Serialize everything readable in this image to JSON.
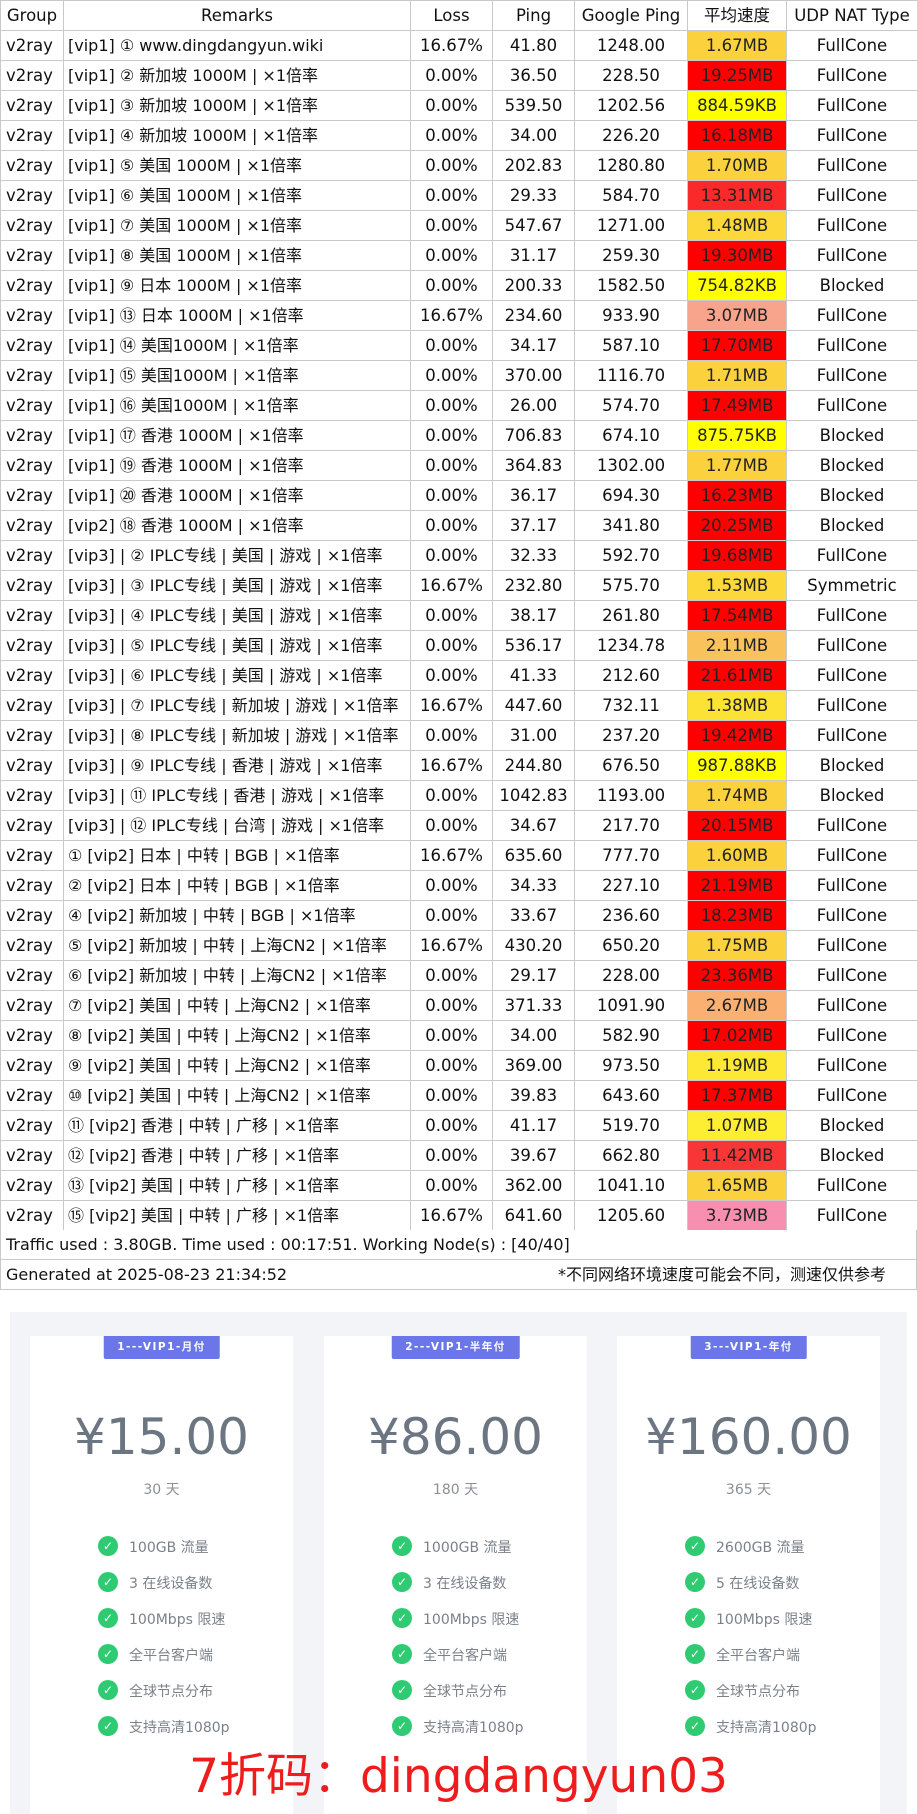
{
  "table": {
    "headers": [
      "Group",
      "Remarks",
      "Loss",
      "Ping",
      "Google Ping",
      "平均速度",
      "UDP NAT Type"
    ],
    "rows": [
      {
        "group": "v2ray",
        "remarks": "[vip1] ① www.dingdangyun.wiki",
        "loss": "16.67%",
        "ping": "41.80",
        "gping": "1248.00",
        "speed": "1.67MB",
        "speed_color": "#fbd23e",
        "nat": "FullCone"
      },
      {
        "group": "v2ray",
        "remarks": "[vip1] ② 新加坡 1000M | ×1倍率",
        "loss": "0.00%",
        "ping": "36.50",
        "gping": "228.50",
        "speed": "19.25MB",
        "speed_color": "#ff0000",
        "nat": "FullCone"
      },
      {
        "group": "v2ray",
        "remarks": "[vip1] ③ 新加坡 1000M | ×1倍率",
        "loss": "0.00%",
        "ping": "539.50",
        "gping": "1202.56",
        "speed": "884.59KB",
        "speed_color": "#ffff00",
        "nat": "FullCone"
      },
      {
        "group": "v2ray",
        "remarks": "[vip1] ④  新加坡 1000M | ×1倍率",
        "loss": "0.00%",
        "ping": "34.00",
        "gping": "226.20",
        "speed": "16.18MB",
        "speed_color": "#ff0000",
        "nat": "FullCone"
      },
      {
        "group": "v2ray",
        "remarks": "[vip1] ⑤  美国 1000M | ×1倍率",
        "loss": "0.00%",
        "ping": "202.83",
        "gping": "1280.80",
        "speed": "1.70MB",
        "speed_color": "#fbd23e",
        "nat": "FullCone"
      },
      {
        "group": "v2ray",
        "remarks": "[vip1] ⑥  美国 1000M | ×1倍率",
        "loss": "0.00%",
        "ping": "29.33",
        "gping": "584.70",
        "speed": "13.31MB",
        "speed_color": "#fa2a2a",
        "nat": "FullCone"
      },
      {
        "group": "v2ray",
        "remarks": "[vip1] ⑦ 美国 1000M | ×1倍率",
        "loss": "0.00%",
        "ping": "547.67",
        "gping": "1271.00",
        "speed": "1.48MB",
        "speed_color": "#fcd83b",
        "nat": "FullCone"
      },
      {
        "group": "v2ray",
        "remarks": "[vip1] ⑧ 美国 1000M | ×1倍率",
        "loss": "0.00%",
        "ping": "31.17",
        "gping": "259.30",
        "speed": "19.30MB",
        "speed_color": "#ff0000",
        "nat": "FullCone"
      },
      {
        "group": "v2ray",
        "remarks": "[vip1] ⑨ 日本 1000M | ×1倍率",
        "loss": "0.00%",
        "ping": "200.33",
        "gping": "1582.50",
        "speed": "754.82KB",
        "speed_color": "#ffff00",
        "nat": "Blocked"
      },
      {
        "group": "v2ray",
        "remarks": "[vip1] ⑬ 日本 1000M | ×1倍率",
        "loss": "16.67%",
        "ping": "234.60",
        "gping": "933.90",
        "speed": "3.07MB",
        "speed_color": "#f8a48c",
        "nat": "FullCone"
      },
      {
        "group": "v2ray",
        "remarks": "[vip1] ⑭ 美国1000M | ×1倍率",
        "loss": "0.00%",
        "ping": "34.17",
        "gping": "587.10",
        "speed": "17.70MB",
        "speed_color": "#ff0000",
        "nat": "FullCone"
      },
      {
        "group": "v2ray",
        "remarks": "[vip1] ⑮ 美国1000M | ×1倍率",
        "loss": "0.00%",
        "ping": "370.00",
        "gping": "1116.70",
        "speed": "1.71MB",
        "speed_color": "#fbd23e",
        "nat": "FullCone"
      },
      {
        "group": "v2ray",
        "remarks": "[vip1] ⑯ 美国1000M | ×1倍率",
        "loss": "0.00%",
        "ping": "26.00",
        "gping": "574.70",
        "speed": "17.49MB",
        "speed_color": "#ff0000",
        "nat": "FullCone"
      },
      {
        "group": "v2ray",
        "remarks": "[vip1] ⑰ 香港 1000M | ×1倍率",
        "loss": "0.00%",
        "ping": "706.83",
        "gping": "674.10",
        "speed": "875.75KB",
        "speed_color": "#ffff00",
        "nat": "Blocked"
      },
      {
        "group": "v2ray",
        "remarks": "[vip1] ⑲ 香港 1000M | ×1倍率",
        "loss": "0.00%",
        "ping": "364.83",
        "gping": "1302.00",
        "speed": "1.77MB",
        "speed_color": "#fbd23e",
        "nat": "Blocked"
      },
      {
        "group": "v2ray",
        "remarks": "[vip1] ⑳ 香港 1000M | ×1倍率",
        "loss": "0.00%",
        "ping": "36.17",
        "gping": "694.30",
        "speed": "16.23MB",
        "speed_color": "#ff0000",
        "nat": "Blocked"
      },
      {
        "group": "v2ray",
        "remarks": "[vip2] ⑱ 香港 1000M | ×1倍率",
        "loss": "0.00%",
        "ping": "37.17",
        "gping": "341.80",
        "speed": "20.25MB",
        "speed_color": "#ff0000",
        "nat": "Blocked"
      },
      {
        "group": "v2ray",
        "remarks": "[vip3] | ② IPLC专线 | 美国 | 游戏 | ×1倍率",
        "loss": "0.00%",
        "ping": "32.33",
        "gping": "592.70",
        "speed": "19.68MB",
        "speed_color": "#ff0000",
        "nat": "FullCone"
      },
      {
        "group": "v2ray",
        "remarks": "[vip3] | ③ IPLC专线 | 美国 | 游戏 | ×1倍率",
        "loss": "16.67%",
        "ping": "232.80",
        "gping": "575.70",
        "speed": "1.53MB",
        "speed_color": "#fcd83b",
        "nat": "Symmetric"
      },
      {
        "group": "v2ray",
        "remarks": "[vip3] | ④ IPLC专线 | 美国 | 游戏 | ×1倍率",
        "loss": "0.00%",
        "ping": "38.17",
        "gping": "261.80",
        "speed": "17.54MB",
        "speed_color": "#ff0000",
        "nat": "FullCone"
      },
      {
        "group": "v2ray",
        "remarks": "[vip3] | ⑤ IPLC专线 | 美国 | 游戏 | ×1倍率",
        "loss": "0.00%",
        "ping": "536.17",
        "gping": "1234.78",
        "speed": "2.11MB",
        "speed_color": "#fac25a",
        "nat": "FullCone"
      },
      {
        "group": "v2ray",
        "remarks": "[vip3] | ⑥ IPLC专线 | 美国 | 游戏 | ×1倍率",
        "loss": "0.00%",
        "ping": "41.33",
        "gping": "212.60",
        "speed": "21.61MB",
        "speed_color": "#ff0000",
        "nat": "FullCone"
      },
      {
        "group": "v2ray",
        "remarks": "[vip3] | ⑦ IPLC专线 | 新加坡 | 游戏 | ×1倍率",
        "loss": "16.67%",
        "ping": "447.60",
        "gping": "732.11",
        "speed": "1.38MB",
        "speed_color": "#fde236",
        "nat": "FullCone"
      },
      {
        "group": "v2ray",
        "remarks": "[vip3] | ⑧  IPLC专线 | 新加坡 | 游戏 | ×1倍率",
        "loss": "0.00%",
        "ping": "31.00",
        "gping": "237.20",
        "speed": "19.42MB",
        "speed_color": "#ff0000",
        "nat": "FullCone"
      },
      {
        "group": "v2ray",
        "remarks": "[vip3] | ⑨  IPLC专线 | 香港 | 游戏 | ×1倍率",
        "loss": "16.67%",
        "ping": "244.80",
        "gping": "676.50",
        "speed": "987.88KB",
        "speed_color": "#ffff00",
        "nat": "Blocked"
      },
      {
        "group": "v2ray",
        "remarks": "[vip3] | ⑪ IPLC专线 | 香港 | 游戏 | ×1倍率",
        "loss": "0.00%",
        "ping": "1042.83",
        "gping": "1193.00",
        "speed": "1.74MB",
        "speed_color": "#fbd23e",
        "nat": "Blocked"
      },
      {
        "group": "v2ray",
        "remarks": "[vip3] | ⑫ IPLC专线 | 台湾 | 游戏 | ×1倍率",
        "loss": "0.00%",
        "ping": "34.67",
        "gping": "217.70",
        "speed": "20.15MB",
        "speed_color": "#ff0000",
        "nat": "FullCone"
      },
      {
        "group": "v2ray",
        "remarks": "① [vip2] 日本  | 中转 | BGB  | ×1倍率",
        "loss": "16.67%",
        "ping": "635.60",
        "gping": "777.70",
        "speed": "1.60MB",
        "speed_color": "#fbd23e",
        "nat": "FullCone"
      },
      {
        "group": "v2ray",
        "remarks": "② [vip2] 日本  | 中转 | BGB  | ×1倍率",
        "loss": "0.00%",
        "ping": "34.33",
        "gping": "227.10",
        "speed": "21.19MB",
        "speed_color": "#ff0000",
        "nat": "FullCone"
      },
      {
        "group": "v2ray",
        "remarks": "④ [vip2] 新加坡 | 中转 | BGB  | ×1倍率",
        "loss": "0.00%",
        "ping": "33.67",
        "gping": "236.60",
        "speed": "18.23MB",
        "speed_color": "#ff0000",
        "nat": "FullCone"
      },
      {
        "group": "v2ray",
        "remarks": "⑤ [vip2] 新加坡 | 中转 | 上海CN2  | ×1倍率",
        "loss": "16.67%",
        "ping": "430.20",
        "gping": "650.20",
        "speed": "1.75MB",
        "speed_color": "#fbd23e",
        "nat": "FullCone"
      },
      {
        "group": "v2ray",
        "remarks": "⑥ [vip2] 新加坡 | 中转 | 上海CN2  | ×1倍率",
        "loss": "0.00%",
        "ping": "29.17",
        "gping": "228.00",
        "speed": "23.36MB",
        "speed_color": "#ff0000",
        "nat": "FullCone"
      },
      {
        "group": "v2ray",
        "remarks": "⑦ [vip2] 美国 | 中转 | 上海CN2  | ×1倍率",
        "loss": "0.00%",
        "ping": "371.33",
        "gping": "1091.90",
        "speed": "2.67MB",
        "speed_color": "#f9b071",
        "nat": "FullCone"
      },
      {
        "group": "v2ray",
        "remarks": "⑧ [vip2] 美国 | 中转 | 上海CN2  | ×1倍率",
        "loss": "0.00%",
        "ping": "34.00",
        "gping": "582.90",
        "speed": "17.02MB",
        "speed_color": "#ff0000",
        "nat": "FullCone"
      },
      {
        "group": "v2ray",
        "remarks": "⑨ [vip2] 美国 | 中转 | 上海CN2  | ×1倍率",
        "loss": "0.00%",
        "ping": "369.00",
        "gping": "973.50",
        "speed": "1.19MB",
        "speed_color": "#fde935",
        "nat": "FullCone"
      },
      {
        "group": "v2ray",
        "remarks": "⑩ [vip2] 美国 | 中转 | 上海CN2  | ×1倍率",
        "loss": "0.00%",
        "ping": "39.83",
        "gping": "643.60",
        "speed": "17.37MB",
        "speed_color": "#ff0000",
        "nat": "FullCone"
      },
      {
        "group": "v2ray",
        "remarks": "⑪ [vip2] 香港 | 中转 | 广移 | ×1倍率",
        "loss": "0.00%",
        "ping": "41.17",
        "gping": "519.70",
        "speed": "1.07MB",
        "speed_color": "#feee33",
        "nat": "Blocked"
      },
      {
        "group": "v2ray",
        "remarks": "⑫ [vip2] 香港 | 中转 | 广移 | ×1倍率",
        "loss": "0.00%",
        "ping": "39.67",
        "gping": "662.80",
        "speed": "11.42MB",
        "speed_color": "#f83636",
        "nat": "Blocked"
      },
      {
        "group": "v2ray",
        "remarks": "⑬ [vip2]  美国 | 中转 | 广移 | ×1倍率",
        "loss": "0.00%",
        "ping": "362.00",
        "gping": "1041.10",
        "speed": "1.65MB",
        "speed_color": "#fbd23e",
        "nat": "FullCone"
      },
      {
        "group": "v2ray",
        "remarks": "⑮ [vip2]  美国 | 中转 | 广移 | ×1倍率",
        "loss": "16.67%",
        "ping": "641.60",
        "gping": "1205.60",
        "speed": "3.73MB",
        "speed_color": "#f790b0",
        "nat": "FullCone"
      }
    ]
  },
  "footer": {
    "traffic": "Traffic used : 3.80GB. Time used : 00:17:51. Working Node(s) : [40/40]",
    "generated": "Generated at 2025-08-23 21:34:52",
    "note": "*不同网络环境速度可能会不同，测速仅供参考"
  },
  "plans": [
    {
      "badge": "1---VIP1-月付",
      "price": "¥15.00",
      "period": "30 天",
      "features": [
        "100GB 流量",
        "3 在线设备数",
        "100Mbps 限速",
        "全平台客户端",
        "全球节点分布",
        "支持高清1080p"
      ]
    },
    {
      "badge": "2---VIP1-半年付",
      "price": "¥86.00",
      "period": "180 天",
      "features": [
        "1000GB 流量",
        "3 在线设备数",
        "100Mbps 限速",
        "全平台客户端",
        "全球节点分布",
        "支持高清1080p"
      ]
    },
    {
      "badge": "3---VIP1-年付",
      "price": "¥160.00",
      "period": "365 天",
      "features": [
        "2600GB 流量",
        "5 在线设备数",
        "100Mbps 限速",
        "全平台客户端",
        "全球节点分布",
        "支持高清1080p"
      ]
    }
  ],
  "discount": "7折码：dingdangyun03",
  "colors": {
    "badge": "#6b76e8",
    "check": "#2fcb72",
    "price": "#6c7582",
    "discount": "#ee1c1c"
  }
}
